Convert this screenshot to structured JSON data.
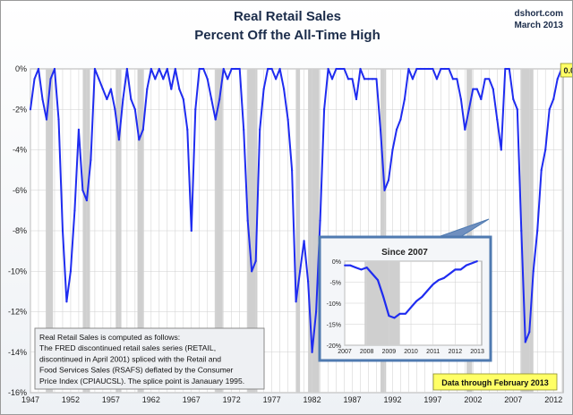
{
  "title": "Real Retail Sales",
  "subtitle": "Percent Off the All-Time High",
  "source": {
    "site": "dshort.com",
    "date": "March 2013"
  },
  "current_label": "0.0%",
  "note_text": "Real Retail Sales is computed as follows: The FRED discontinued retail sales series (RETAIL, discontinued in April 2001) spliced with the Retail and Food Services Sales (RSAFS) deflated by the Consumer Price Index (CPIAUCSL). The splice point is Janauary 1995.",
  "note_lines": [
    "Real Retail Sales is computed as follows:",
    "The FRED discontinued retail sales series (RETAIL,",
    "discontinued in April 2001) spliced with the Retail and",
    "Food Services Sales (RSAFS) deflated by the Consumer",
    "Price Index (CPIAUCSL). The splice point is Janauary 1995."
  ],
  "data_through": "Data through February 2013",
  "colors": {
    "line": "#1f2cf0",
    "recession": "#cfcfcf",
    "title": "#1b2c4a",
    "badge": "#ffff66",
    "inset_border": "#4f7ab0"
  },
  "chart_data": [
    {
      "type": "line",
      "title": "Real Retail Sales Percent Off the All-Time High",
      "xlim": [
        1947,
        2013.2
      ],
      "ylim": [
        -16,
        0
      ],
      "x_ticks": [
        1947,
        1952,
        1957,
        1962,
        1967,
        1972,
        1977,
        1982,
        1987,
        1992,
        1997,
        2002,
        2007,
        2012
      ],
      "y_ticks": [
        0,
        -2,
        -4,
        -6,
        -8,
        -10,
        -12,
        -14,
        -16
      ],
      "y_tick_labels": [
        "0%",
        "-2%",
        "-4%",
        "-6%",
        "-8%",
        "-10%",
        "-12%",
        "-14%",
        "-16%"
      ],
      "grid": true,
      "recessions": [
        [
          1948.9,
          1949.8
        ],
        [
          1953.5,
          1954.4
        ],
        [
          1957.6,
          1958.3
        ],
        [
          1960.3,
          1961.1
        ],
        [
          1969.9,
          1970.9
        ],
        [
          1973.9,
          1975.2
        ],
        [
          1980.0,
          1980.5
        ],
        [
          1981.5,
          1982.9
        ],
        [
          1990.5,
          1991.2
        ],
        [
          2001.2,
          2001.9
        ],
        [
          2007.9,
          2009.5
        ]
      ],
      "x": [
        1947,
        1947.5,
        1948,
        1948.5,
        1949,
        1949.5,
        1950,
        1950.5,
        1951,
        1951.5,
        1952,
        1952.5,
        1953,
        1953.5,
        1954,
        1954.5,
        1955,
        1955.5,
        1956,
        1956.5,
        1957,
        1957.5,
        1958,
        1958.5,
        1959,
        1959.5,
        1960,
        1960.5,
        1961,
        1961.5,
        1962,
        1962.5,
        1963,
        1963.5,
        1964,
        1964.5,
        1965,
        1965.5,
        1966,
        1966.5,
        1967,
        1967.5,
        1968,
        1968.5,
        1969,
        1969.5,
        1970,
        1970.5,
        1971,
        1971.5,
        1972,
        1972.5,
        1973,
        1973.5,
        1974,
        1974.5,
        1975,
        1975.5,
        1976,
        1976.5,
        1977,
        1977.5,
        1978,
        1978.5,
        1979,
        1979.5,
        1980,
        1980.5,
        1981,
        1981.5,
        1982,
        1982.5,
        1983,
        1983.5,
        1984,
        1984.5,
        1985,
        1985.5,
        1986,
        1986.5,
        1987,
        1987.5,
        1988,
        1988.5,
        1989,
        1989.5,
        1990,
        1990.5,
        1991,
        1991.5,
        1992,
        1992.5,
        1993,
        1993.5,
        1994,
        1994.5,
        1995,
        1995.5,
        1996,
        1996.5,
        1997,
        1997.5,
        1998,
        1998.5,
        1999,
        1999.5,
        2000,
        2000.5,
        2001,
        2001.5,
        2002,
        2002.5,
        2003,
        2003.5,
        2004,
        2004.5,
        2005,
        2005.5,
        2006,
        2006.5,
        2007,
        2007.5,
        2008,
        2008.5,
        2009,
        2009.5,
        2010,
        2010.5,
        2011,
        2011.5,
        2012,
        2012.5,
        2013
      ],
      "y": [
        -2.0,
        -0.5,
        0,
        -1.5,
        -2.5,
        -0.5,
        0,
        -2.5,
        -8.0,
        -11.5,
        -10.0,
        -7.0,
        -3.0,
        -6.0,
        -6.5,
        -4.5,
        0,
        -0.5,
        -1.0,
        -1.5,
        -1.0,
        -2.0,
        -3.5,
        -1.5,
        0,
        -1.5,
        -2.0,
        -3.5,
        -3.0,
        -1.0,
        0,
        -0.5,
        0,
        -0.5,
        0,
        -1.0,
        0,
        -1.0,
        -1.5,
        -3.0,
        -8.0,
        -2.0,
        0,
        0,
        -0.5,
        -1.5,
        -2.5,
        -1.5,
        0,
        -0.5,
        0,
        0,
        0,
        -3.0,
        -7.5,
        -10.0,
        -9.5,
        -3.0,
        -1.0,
        0,
        0,
        -0.5,
        0,
        -1.0,
        -2.5,
        -5.0,
        -11.5,
        -10.0,
        -8.5,
        -10.5,
        -14.0,
        -12.0,
        -7.5,
        -2.0,
        0,
        -0.5,
        0,
        0,
        0,
        -0.5,
        -0.5,
        -1.5,
        0,
        -0.5,
        -0.5,
        -0.5,
        -0.5,
        -3.0,
        -6.0,
        -5.5,
        -4.0,
        -3.0,
        -2.5,
        -1.5,
        0,
        -0.5,
        0,
        0,
        0,
        0,
        0,
        -0.5,
        0,
        0,
        0,
        -0.5,
        -0.5,
        -1.5,
        -3.0,
        -2.0,
        -1.0,
        -1.0,
        -1.5,
        -0.5,
        -0.5,
        -1.0,
        -2.5,
        -4.0,
        0,
        0,
        -1.5,
        -2.0,
        -8.0,
        -13.5,
        -13.0,
        -10.0,
        -8.0,
        -5.0,
        -4.0,
        -2.0,
        -1.5,
        -0.5,
        0
      ]
    },
    {
      "type": "line",
      "title": "Since 2007",
      "xlim": [
        2007,
        2013.2
      ],
      "ylim": [
        -20,
        0
      ],
      "x_ticks": [
        2007,
        2008,
        2009,
        2010,
        2011,
        2012,
        2013
      ],
      "y_ticks": [
        0,
        -5,
        -10,
        -15,
        -20
      ],
      "y_tick_labels": [
        "0%",
        "-5%",
        "-10%",
        "-15%",
        "-20%"
      ],
      "grid": true,
      "recessions": [
        [
          2007.9,
          2009.5
        ]
      ],
      "x": [
        2007,
        2007.25,
        2007.5,
        2007.75,
        2008,
        2008.25,
        2008.5,
        2008.75,
        2009,
        2009.25,
        2009.5,
        2009.75,
        2010,
        2010.25,
        2010.5,
        2010.75,
        2011,
        2011.25,
        2011.5,
        2011.75,
        2012,
        2012.25,
        2012.5,
        2012.75,
        2013
      ],
      "y": [
        -1.0,
        -1.0,
        -1.5,
        -2.0,
        -1.5,
        -3.0,
        -4.5,
        -8.5,
        -13.0,
        -13.5,
        -12.5,
        -12.5,
        -11.0,
        -9.5,
        -8.5,
        -7.0,
        -5.5,
        -4.5,
        -4.0,
        -3.0,
        -2.0,
        -2.0,
        -1.0,
        -0.5,
        0
      ]
    }
  ]
}
